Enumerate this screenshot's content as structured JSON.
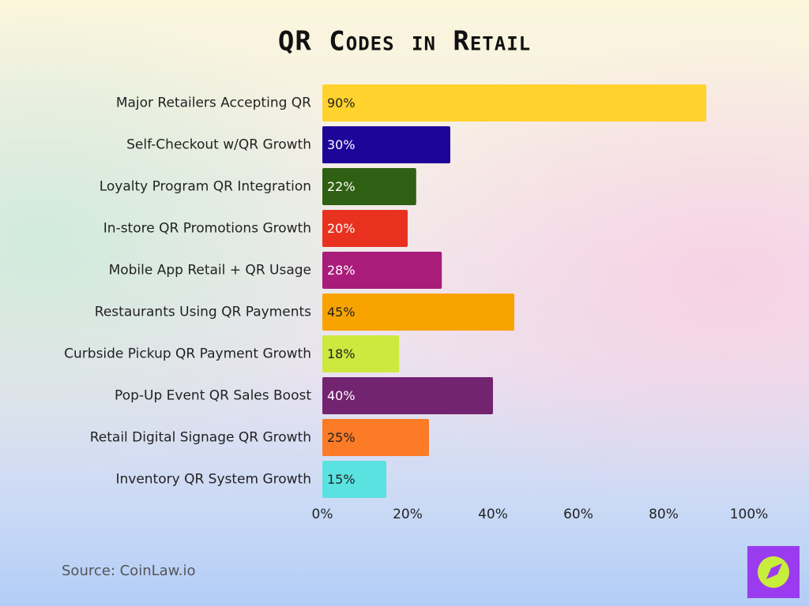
{
  "chart_data": {
    "type": "bar",
    "orientation": "horizontal",
    "title": "QR Codes in Retail",
    "categories": [
      "Major Retailers Accepting QR",
      "Self-Checkout w/QR Growth",
      "Loyalty Program QR Integration",
      "In-store QR Promotions Growth",
      "Mobile App Retail + QR Usage",
      "Restaurants Using QR Payments",
      "Curbside Pickup QR Payment Growth",
      "Pop-Up Event QR Sales Boost",
      "Retail Digital Signage QR Growth",
      "Inventory QR System Growth"
    ],
    "values": [
      90,
      30,
      22,
      20,
      28,
      45,
      18,
      40,
      25,
      15
    ],
    "value_labels": [
      "90%",
      "30%",
      "22%",
      "20%",
      "28%",
      "45%",
      "18%",
      "40%",
      "25%",
      "15%"
    ],
    "colors": [
      "#ffd22e",
      "#1e0599",
      "#2f5f12",
      "#e8321f",
      "#a91c7a",
      "#f8a300",
      "#cde83e",
      "#722470",
      "#fb7b26",
      "#5ae2e0"
    ],
    "xlim": [
      0,
      100
    ],
    "xticks": [
      {
        "value": 0,
        "label": "0%"
      },
      {
        "value": 20,
        "label": "20%"
      },
      {
        "value": 40,
        "label": "40%"
      },
      {
        "value": 60,
        "label": "60%"
      },
      {
        "value": 80,
        "label": "80%"
      },
      {
        "value": 100,
        "label": "100%"
      }
    ],
    "grid": false,
    "source": "Source: CoinLaw.io"
  }
}
